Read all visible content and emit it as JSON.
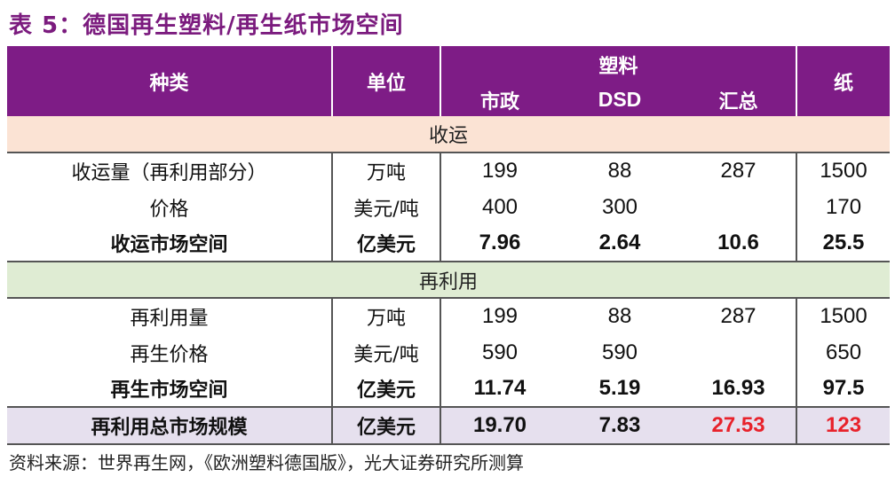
{
  "title": "表 5：德国再生塑料/再生纸市场空间",
  "header": {
    "col_kind": "种类",
    "col_unit": "单位",
    "col_plastic": "塑料",
    "col_municipal": "市政",
    "col_dsd": "DSD",
    "col_total": "汇总",
    "col_paper": "纸"
  },
  "sections": {
    "collection": "收运",
    "reuse": "再利用"
  },
  "rows": [
    {
      "kind": "收运量（再利用部分）",
      "unit": "万吨",
      "municipal": "199",
      "dsd": "88",
      "total": "287",
      "paper": "1500"
    },
    {
      "kind": "价格",
      "unit": "美元/吨",
      "municipal": "400",
      "dsd": "300",
      "total": "",
      "paper": "170"
    },
    {
      "kind": "收运市场空间",
      "unit": "亿美元",
      "municipal": "7.96",
      "dsd": "2.64",
      "total": "10.6",
      "paper": "25.5"
    },
    {
      "kind": "再利用量",
      "unit": "万吨",
      "municipal": "199",
      "dsd": "88",
      "total": "287",
      "paper": "1500"
    },
    {
      "kind": "再生价格",
      "unit": "美元/吨",
      "municipal": "590",
      "dsd": "590",
      "total": "",
      "paper": "650"
    },
    {
      "kind": "再生市场空间",
      "unit": "亿美元",
      "municipal": "11.74",
      "dsd": "5.19",
      "total": "16.93",
      "paper": "97.5"
    }
  ],
  "total_row": {
    "kind": "再利用总市场规模",
    "unit": "亿美元",
    "municipal": "19.70",
    "dsd": "7.83",
    "total": "27.53",
    "paper": "123"
  },
  "source": "资料来源：世界再生网，《欧洲塑料德国版》，光大证券研究所测算",
  "colors": {
    "header_bg": "#7e1c86",
    "title": "#7b1b7e",
    "section1_bg": "#fbe3d4",
    "section2_bg": "#dfecd3",
    "total_bg": "#e6e0ee",
    "highlight": "#e8222b"
  }
}
